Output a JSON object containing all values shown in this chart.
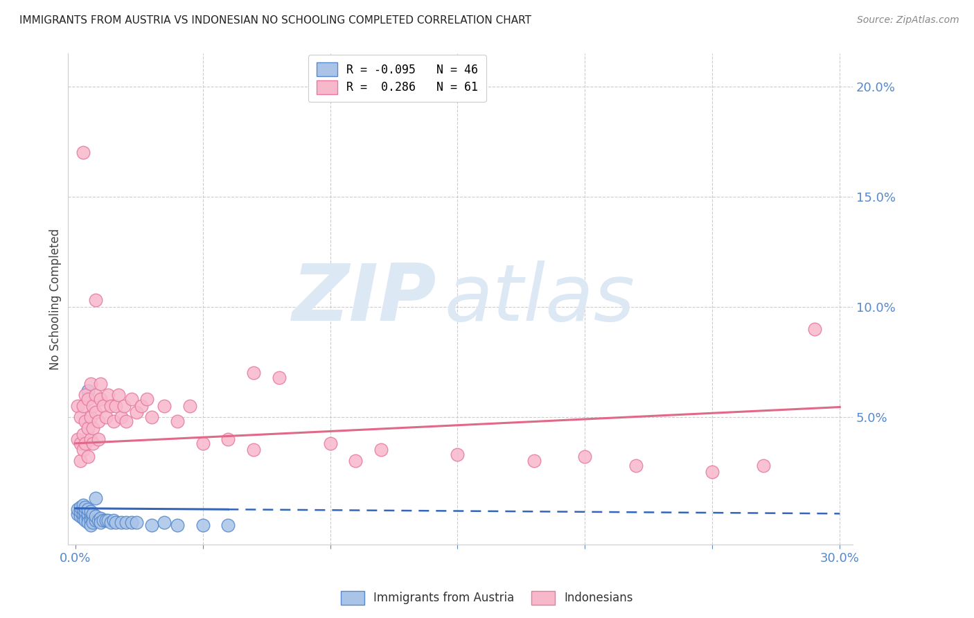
{
  "title": "IMMIGRANTS FROM AUSTRIA VS INDONESIAN NO SCHOOLING COMPLETED CORRELATION CHART",
  "source": "Source: ZipAtlas.com",
  "ylabel_left": "No Schooling Completed",
  "xlim": [
    -0.003,
    0.305
  ],
  "ylim": [
    -0.008,
    0.215
  ],
  "background_color": "#ffffff",
  "grid_color": "#cccccc",
  "austria_color": "#aac4e8",
  "austria_edge_color": "#5588cc",
  "indonesian_color": "#f8b8cc",
  "indonesian_edge_color": "#e878a0",
  "austria_line_color": "#3366bb",
  "indonesian_line_color": "#e06888",
  "legend_austria_label": "R = -0.095   N = 46",
  "legend_indonesian_label": "R =  0.286   N = 61",
  "legend_austria_short": "Immigrants from Austria",
  "legend_indonesian_short": "Indonesians",
  "watermark_zip": "ZIP",
  "watermark_atlas": "atlas",
  "watermark_color": "#dde8f5",
  "austria_line_intercept": 0.0085,
  "austria_line_slope": -0.008,
  "indonesian_line_intercept": 0.038,
  "indonesian_line_slope": 0.055,
  "austria_x": [
    0.001,
    0.001,
    0.002,
    0.002,
    0.002,
    0.003,
    0.003,
    0.003,
    0.003,
    0.004,
    0.004,
    0.004,
    0.004,
    0.005,
    0.005,
    0.005,
    0.005,
    0.006,
    0.006,
    0.006,
    0.006,
    0.007,
    0.007,
    0.007,
    0.008,
    0.008,
    0.009,
    0.01,
    0.01,
    0.011,
    0.012,
    0.013,
    0.014,
    0.015,
    0.016,
    0.018,
    0.02,
    0.022,
    0.024,
    0.03,
    0.035,
    0.04,
    0.05,
    0.06,
    0.005,
    0.008
  ],
  "austria_y": [
    0.006,
    0.008,
    0.005,
    0.007,
    0.009,
    0.004,
    0.006,
    0.008,
    0.01,
    0.005,
    0.007,
    0.009,
    0.003,
    0.004,
    0.006,
    0.008,
    0.002,
    0.005,
    0.007,
    0.003,
    0.001,
    0.004,
    0.006,
    0.002,
    0.003,
    0.005,
    0.003,
    0.004,
    0.002,
    0.003,
    0.003,
    0.003,
    0.002,
    0.003,
    0.002,
    0.002,
    0.002,
    0.002,
    0.002,
    0.001,
    0.002,
    0.001,
    0.001,
    0.001,
    0.062,
    0.013
  ],
  "indonesian_x": [
    0.001,
    0.001,
    0.002,
    0.002,
    0.002,
    0.003,
    0.003,
    0.003,
    0.004,
    0.004,
    0.004,
    0.005,
    0.005,
    0.005,
    0.006,
    0.006,
    0.006,
    0.007,
    0.007,
    0.007,
    0.008,
    0.008,
    0.009,
    0.009,
    0.01,
    0.01,
    0.011,
    0.012,
    0.013,
    0.014,
    0.015,
    0.016,
    0.017,
    0.018,
    0.019,
    0.02,
    0.022,
    0.024,
    0.026,
    0.028,
    0.03,
    0.035,
    0.04,
    0.045,
    0.05,
    0.06,
    0.07,
    0.08,
    0.1,
    0.11,
    0.12,
    0.15,
    0.18,
    0.2,
    0.22,
    0.25,
    0.27,
    0.29,
    0.003,
    0.008,
    0.07
  ],
  "indonesian_y": [
    0.04,
    0.055,
    0.038,
    0.05,
    0.03,
    0.042,
    0.055,
    0.035,
    0.048,
    0.06,
    0.038,
    0.045,
    0.058,
    0.032,
    0.05,
    0.04,
    0.065,
    0.055,
    0.045,
    0.038,
    0.052,
    0.06,
    0.048,
    0.04,
    0.058,
    0.065,
    0.055,
    0.05,
    0.06,
    0.055,
    0.048,
    0.055,
    0.06,
    0.05,
    0.055,
    0.048,
    0.058,
    0.052,
    0.055,
    0.058,
    0.05,
    0.055,
    0.048,
    0.055,
    0.038,
    0.04,
    0.035,
    0.068,
    0.038,
    0.03,
    0.035,
    0.033,
    0.03,
    0.032,
    0.028,
    0.025,
    0.028,
    0.09,
    0.17,
    0.103,
    0.07
  ]
}
